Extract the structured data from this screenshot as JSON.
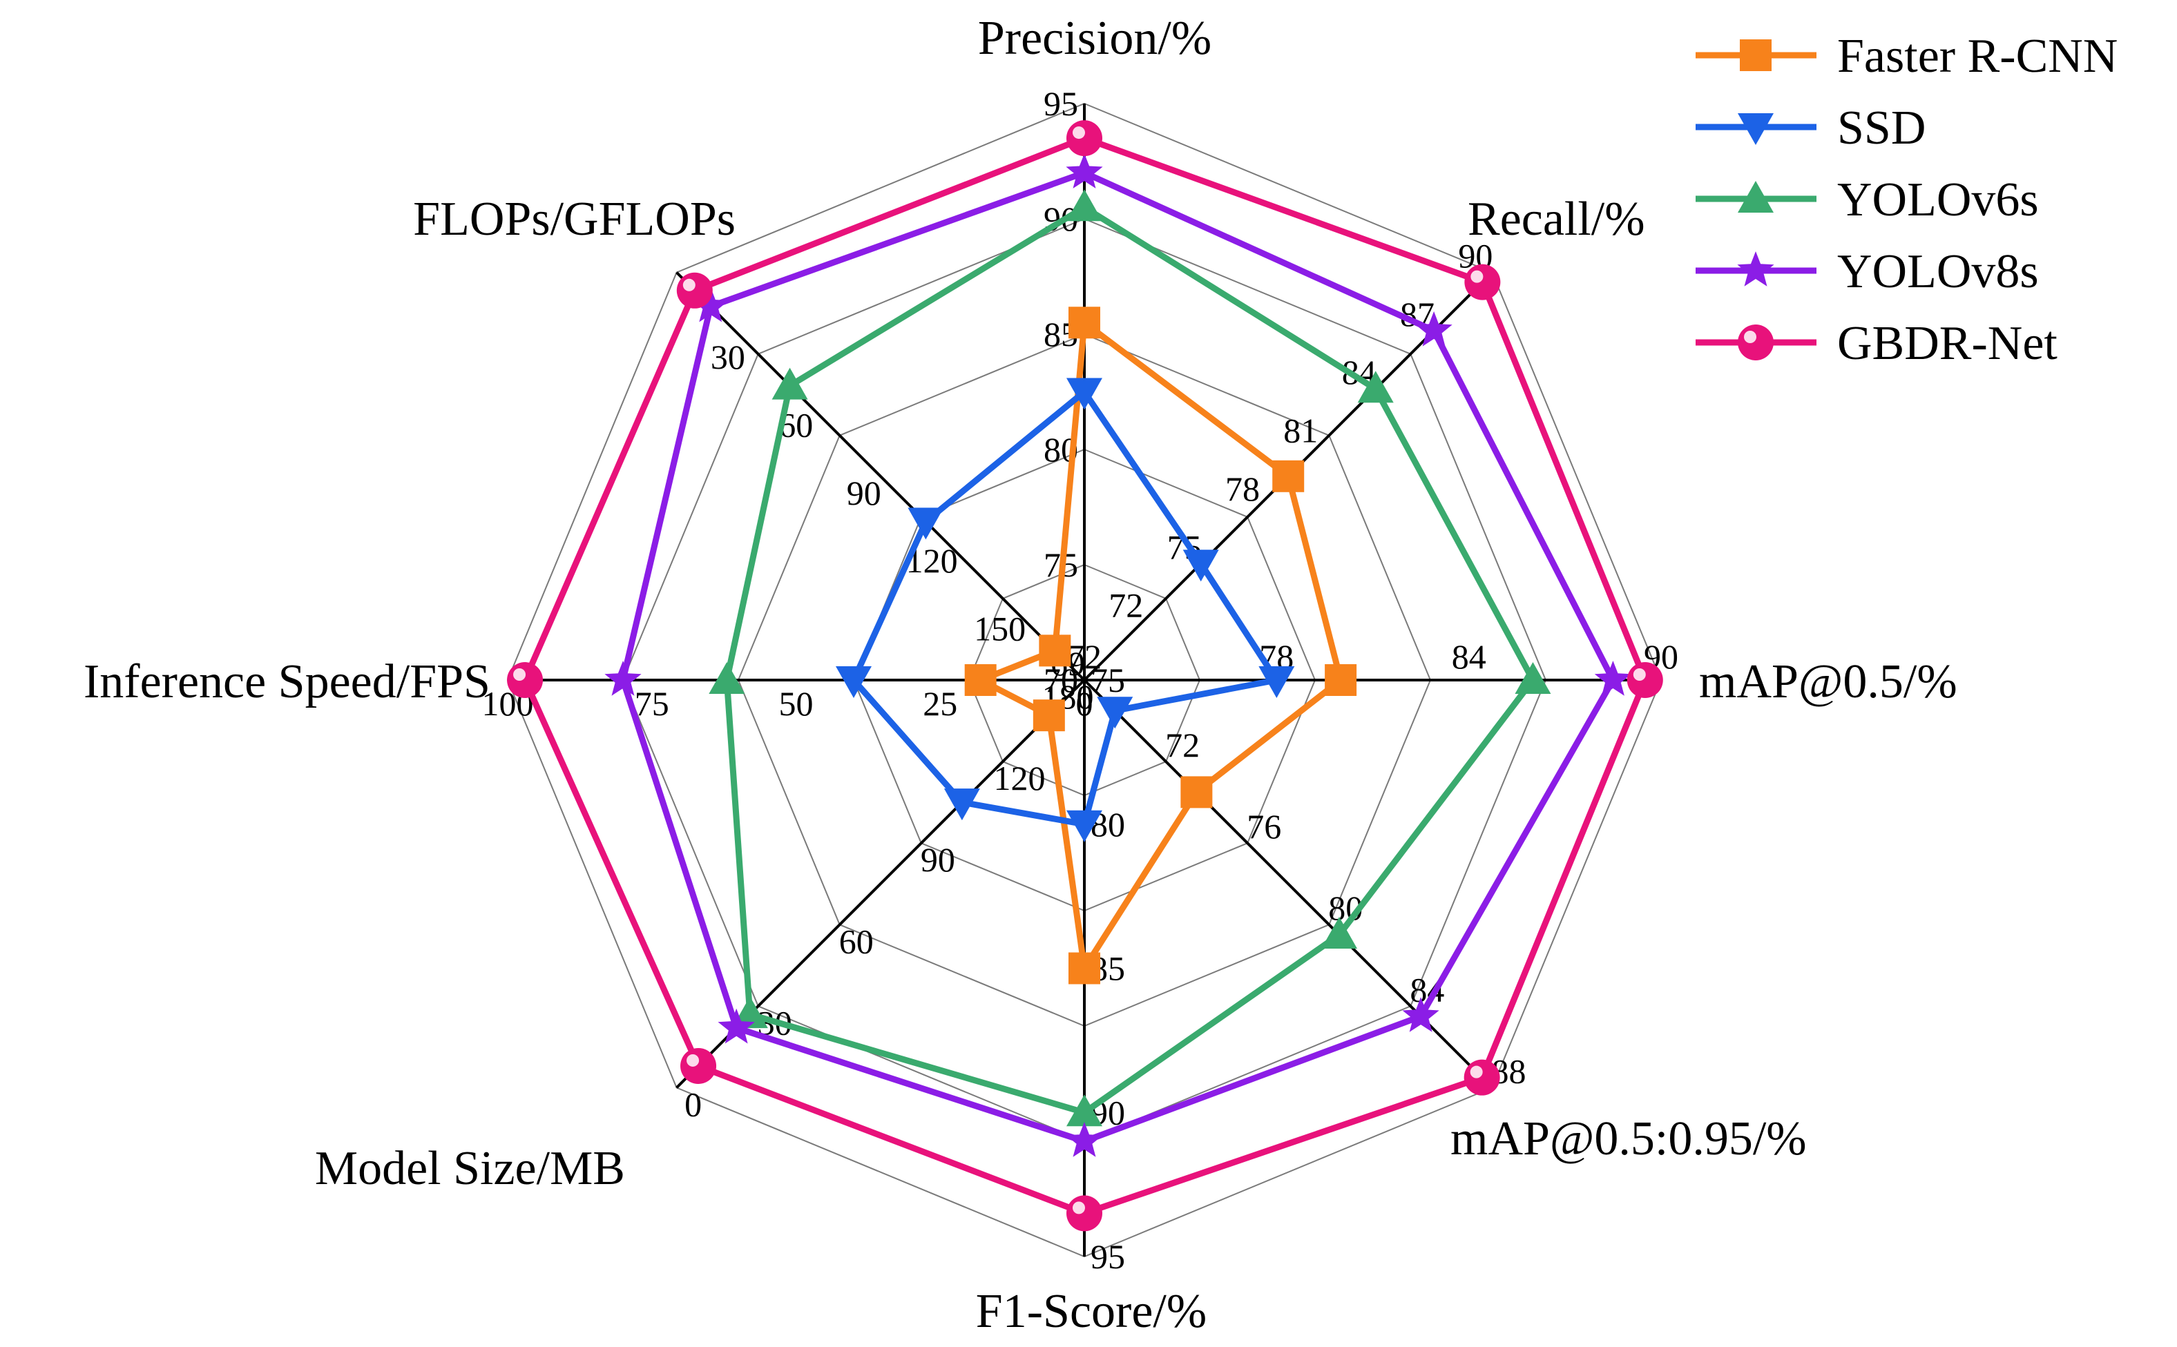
{
  "chart_data": {
    "type": "radar",
    "title": "",
    "axes": [
      {
        "label": "Precision/%",
        "min": 70,
        "max": 95,
        "ticks": [
          "95",
          "90",
          "85",
          "80",
          "75",
          "70"
        ]
      },
      {
        "label": "Recall/%",
        "min": 69,
        "max": 90,
        "ticks": [
          "90",
          "87",
          "84",
          "81",
          "78",
          "75",
          "72",
          "69"
        ]
      },
      {
        "label": "mAP@0.5/%",
        "min": 72,
        "max": 90,
        "ticks": [
          "90",
          "84",
          "78",
          "72"
        ]
      },
      {
        "label": "mAP@0.5:0.95/%",
        "min": 68,
        "max": 88,
        "ticks": [
          "88",
          "84",
          "80",
          "76",
          "72"
        ]
      },
      {
        "label": "F1-Score/%",
        "min": 75,
        "max": 95,
        "ticks": [
          "95",
          "90",
          "85",
          "80",
          "75"
        ]
      },
      {
        "label": "Model Size/MB",
        "min": 0,
        "max": 150,
        "inverted": true,
        "ticks": [
          "0",
          "30",
          "60",
          "90",
          "120"
        ]
      },
      {
        "label": "Inference Speed/FPS",
        "min": 0,
        "max": 100,
        "ticks": [
          "100",
          "75",
          "50",
          "25",
          "0"
        ]
      },
      {
        "label": "FLOPs/GFLOPs",
        "min": 0,
        "max": 180,
        "inverted": true,
        "ticks": [
          "30",
          "60",
          "90",
          "120",
          "150",
          "180"
        ]
      }
    ],
    "series": [
      {
        "name": "Faster R-CNN",
        "color": "#f7821b",
        "marker": "square",
        "values": [
          85.5,
          79.5,
          80.0,
          73.5,
          85.0,
          137,
          18,
          167
        ]
      },
      {
        "name": "SSD",
        "color": "#1c62e6",
        "marker": "triangle-down",
        "values": [
          82.5,
          75.0,
          78.0,
          69.5,
          80.0,
          105,
          40,
          110
        ]
      },
      {
        "name": "YOLOv6s",
        "color": "#3aaa6e",
        "marker": "triangle-up",
        "values": [
          90.5,
          84.0,
          86.0,
          80.5,
          90.0,
          27,
          62,
          50
        ]
      },
      {
        "name": "YOLOv8s",
        "color": "#8b1de6",
        "marker": "star",
        "values": [
          92.0,
          87.0,
          88.5,
          84.5,
          91.0,
          22,
          80,
          15
        ]
      },
      {
        "name": "GBDR-Net",
        "color": "#e8127b",
        "marker": "circle",
        "values": [
          93.5,
          89.5,
          89.5,
          87.5,
          93.5,
          8,
          97,
          8
        ]
      }
    ],
    "legend_position": "top-right",
    "grid": true
  }
}
